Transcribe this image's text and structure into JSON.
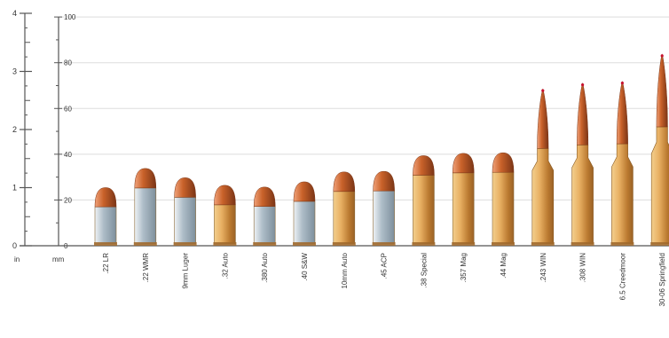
{
  "chart_data": {
    "type": "bar",
    "title": "",
    "xlabel": "",
    "ylabel": "",
    "units": {
      "inch": "in",
      "mm": "mm"
    },
    "y_inch_ticks": [
      0,
      1,
      2,
      3,
      4
    ],
    "y_mm_ticks": [
      0,
      20,
      40,
      60,
      80,
      100
    ],
    "ylim_inch": [
      0,
      4
    ],
    "grid": true,
    "categories": [
      ".22 LR",
      ".22 WMR",
      "9mm Luger",
      ".32 Auto",
      ".380 Auto",
      ".40 S&W",
      "10mm Auto",
      ".45 ACP",
      ".38 Special",
      ".357 Mag",
      ".44 Mag",
      ".243 WIN",
      ".308 WIN",
      "6.5 Creedmoor",
      "30-06 Springfield"
    ],
    "series": [
      {
        "values": [
          1.0,
          1.33,
          1.17,
          1.04,
          1.01,
          1.1,
          1.27,
          1.28,
          1.55,
          1.59,
          1.6,
          2.7,
          2.8,
          2.83,
          3.3
        ]
      }
    ],
    "colors": {
      "brass": "#e8b063",
      "brass_dark": "#b9782f",
      "copper": "#c9622a",
      "nickel": "#aebdc8",
      "grid": "#dddddd",
      "axis": "#555555",
      "text": "#333333"
    }
  }
}
